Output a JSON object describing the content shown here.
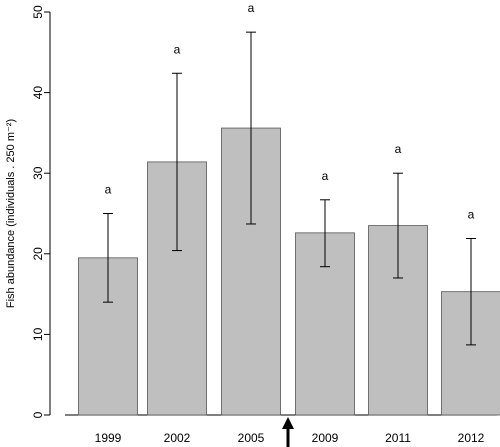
{
  "chart_data": {
    "type": "bar",
    "categories": [
      "1999",
      "2002",
      "2005",
      "2009",
      "2011",
      "2012"
    ],
    "values": [
      19.5,
      31.4,
      35.6,
      22.6,
      23.5,
      15.3
    ],
    "error_low": [
      14.0,
      20.4,
      23.7,
      18.4,
      17.0,
      8.7
    ],
    "error_high": [
      25.0,
      42.4,
      47.5,
      26.7,
      30.0,
      21.9
    ],
    "significance_labels": [
      "a",
      "a",
      "a",
      "a",
      "a",
      "a"
    ],
    "ylabel": "Fish abundance (individuals . 250 m⁻²)",
    "ylim": [
      0,
      50
    ],
    "yticks": [
      0,
      10,
      20,
      30,
      40,
      50
    ],
    "bar_color": "#bfbfbf",
    "annotation": {
      "type": "arrow-up",
      "between": [
        "2005",
        "2009"
      ]
    }
  }
}
